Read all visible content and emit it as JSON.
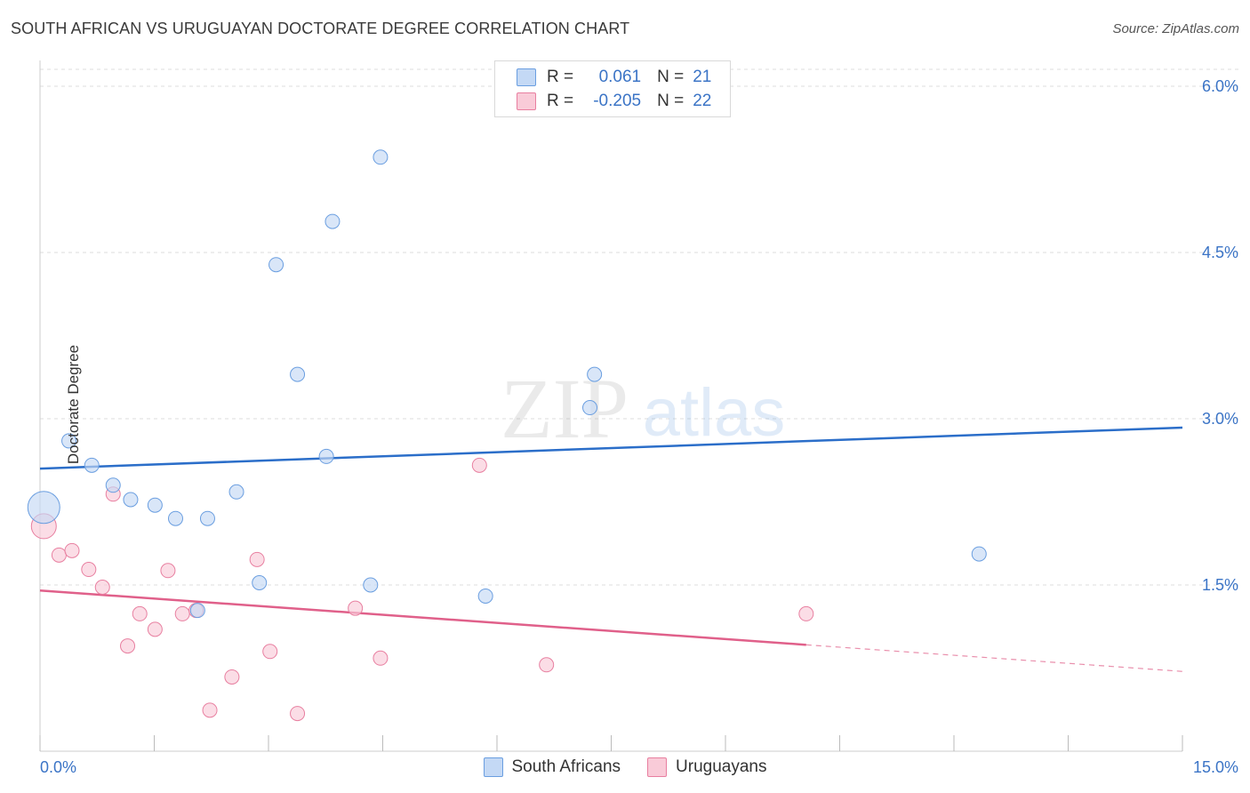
{
  "title": "SOUTH AFRICAN VS URUGUAYAN DOCTORATE DEGREE CORRELATION CHART",
  "source": "Source: ZipAtlas.com",
  "watermark": {
    "zip": "ZIP",
    "atlas": "atlas"
  },
  "legend": {
    "rows": [
      {
        "r_label": "R =",
        "r_value": "0.061",
        "n_label": "N =",
        "n_value": "21"
      },
      {
        "r_label": "R =",
        "r_value": "-0.205",
        "n_label": "N =",
        "n_value": "22"
      }
    ]
  },
  "chart_data": {
    "type": "scatter",
    "title": "SOUTH AFRICAN VS URUGUAYAN DOCTORATE DEGREE CORRELATION CHART",
    "xlabel": "",
    "ylabel": "Doctorate Degree",
    "xlim": [
      0,
      15
    ],
    "ylim": [
      0,
      6.2
    ],
    "x_tick_labels": [
      "0.0%",
      "15.0%"
    ],
    "y_ticks": [
      1.5,
      3.0,
      4.5,
      6.0
    ],
    "y_tick_labels": [
      "1.5%",
      "3.0%",
      "4.5%",
      "6.0%"
    ],
    "grid": true,
    "legend_position": "bottom",
    "series": [
      {
        "name": "South Africans",
        "color": "#6a9ee0",
        "fill": "#c4d9f5",
        "points": [
          [
            0.05,
            2.2,
            18
          ],
          [
            0.38,
            2.8,
            8
          ],
          [
            0.68,
            2.58,
            8
          ],
          [
            0.96,
            2.4,
            8
          ],
          [
            1.19,
            2.27,
            8
          ],
          [
            1.51,
            2.22,
            8
          ],
          [
            1.78,
            2.1,
            8
          ],
          [
            2.2,
            2.1,
            8
          ],
          [
            2.07,
            1.27,
            8
          ],
          [
            2.58,
            2.34,
            8
          ],
          [
            2.88,
            1.52,
            8
          ],
          [
            3.1,
            4.39,
            8
          ],
          [
            3.38,
            3.4,
            8
          ],
          [
            3.84,
            4.78,
            8
          ],
          [
            3.76,
            2.66,
            8
          ],
          [
            4.47,
            5.36,
            8
          ],
          [
            4.34,
            1.5,
            8
          ],
          [
            5.85,
            1.4,
            8
          ],
          [
            7.22,
            3.1,
            8
          ],
          [
            7.28,
            3.4,
            8
          ],
          [
            12.33,
            1.78,
            8
          ]
        ],
        "trend": {
          "x0": 0,
          "y0": 2.55,
          "x1": 15,
          "y1": 2.92
        }
      },
      {
        "name": "Uruguayans",
        "color": "#e87fa0",
        "fill": "#f9cbd8",
        "points": [
          [
            0.05,
            2.03,
            14
          ],
          [
            0.25,
            1.77,
            8
          ],
          [
            0.42,
            1.81,
            8
          ],
          [
            0.64,
            1.64,
            8
          ],
          [
            0.82,
            1.48,
            8
          ],
          [
            0.96,
            2.32,
            8
          ],
          [
            1.15,
            0.95,
            8
          ],
          [
            1.31,
            1.24,
            8
          ],
          [
            1.51,
            1.1,
            8
          ],
          [
            1.68,
            1.63,
            8
          ],
          [
            1.87,
            1.24,
            8
          ],
          [
            2.05,
            1.27,
            8
          ],
          [
            2.52,
            0.67,
            8
          ],
          [
            2.23,
            0.37,
            8
          ],
          [
            2.85,
            1.73,
            8
          ],
          [
            3.02,
            0.9,
            8
          ],
          [
            3.38,
            0.34,
            8
          ],
          [
            4.14,
            1.29,
            8
          ],
          [
            4.47,
            0.84,
            8
          ],
          [
            5.77,
            2.58,
            8
          ],
          [
            6.65,
            0.78,
            8
          ],
          [
            10.06,
            1.24,
            8
          ]
        ],
        "trend": {
          "x0": 0,
          "y0": 1.45,
          "x1": 10.06,
          "y1": 0.96,
          "dash_x1": 15,
          "dash_y1": 0.72
        }
      }
    ]
  },
  "colors": {
    "blue_line": "#2b6ec9",
    "pink_line": "#e0608a",
    "grid": "#dddddd",
    "tick_label": "#3b74c6"
  }
}
